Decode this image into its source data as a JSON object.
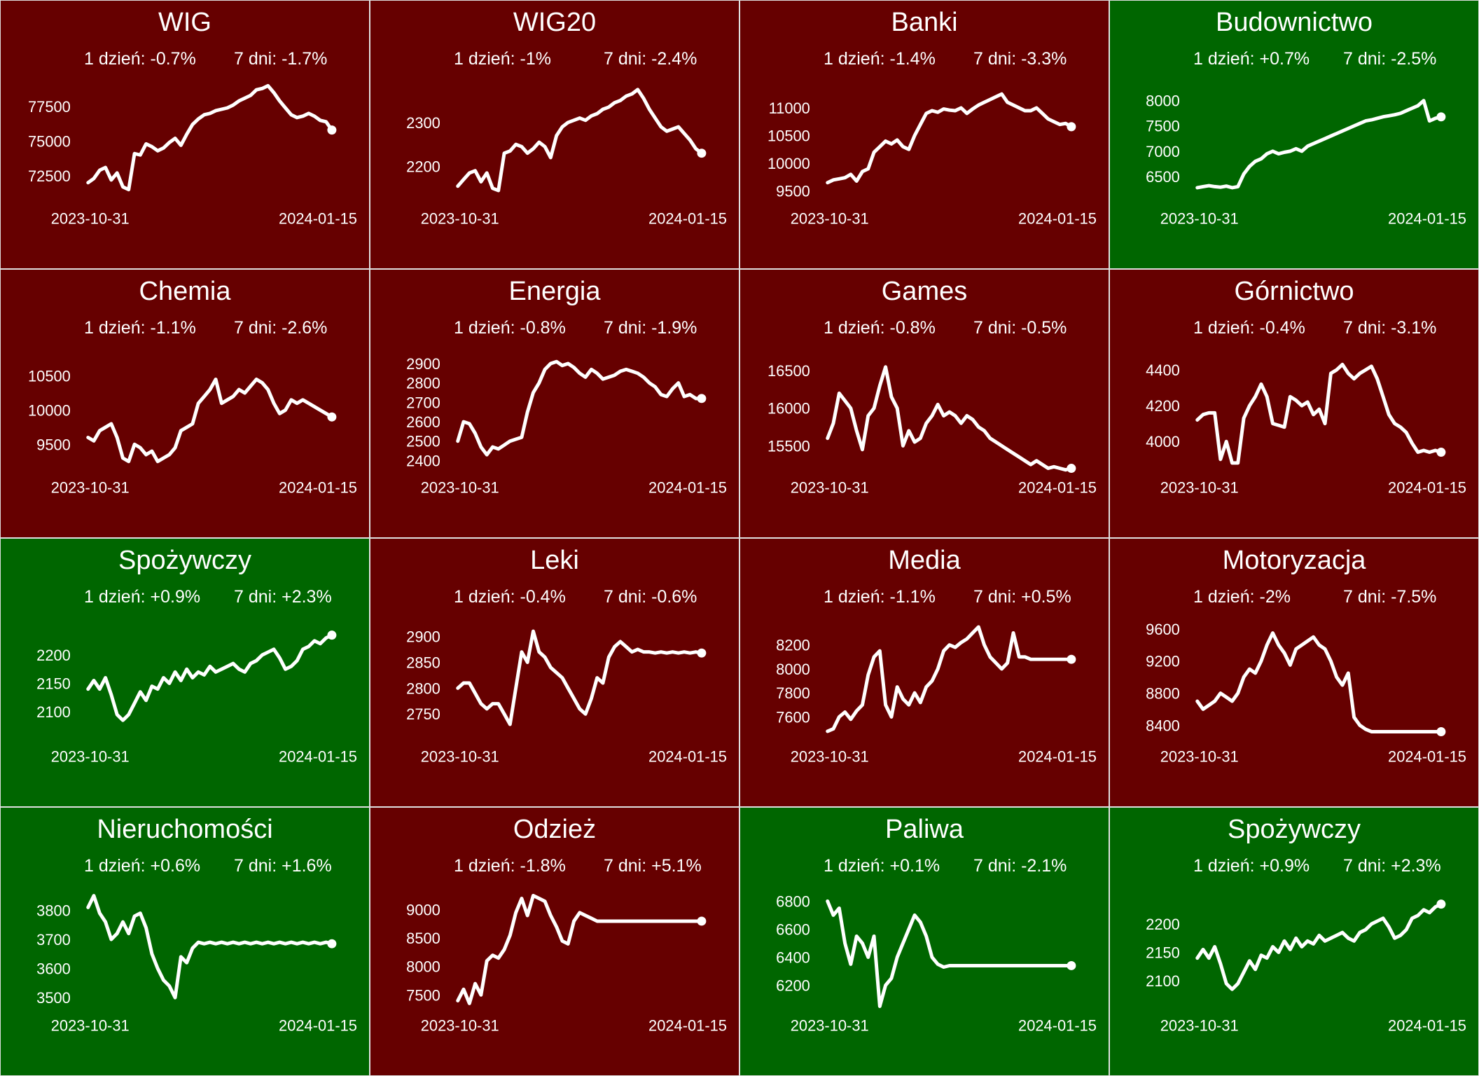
{
  "colors": {
    "down": "#660000",
    "up": "#006600",
    "line": "#ffffff",
    "text": "#ffffff",
    "border": "#e0e0e0"
  },
  "labels": {
    "day_prefix": "1 dzień:",
    "week_prefix": "7 dni:"
  },
  "chart_data": [
    {
      "type": "line",
      "title": "WIG",
      "trend": "down",
      "day_change": "-0.7%",
      "week_change": "-1.7%",
      "x_start": "2023-10-31",
      "x_end": "2024-01-15",
      "yticks": [
        "72500",
        "75000",
        "77500"
      ],
      "ylim": [
        70800,
        79200
      ],
      "values": [
        72000,
        72300,
        72900,
        73100,
        72200,
        72700,
        71700,
        71500,
        74100,
        74000,
        74800,
        74600,
        74300,
        74500,
        74900,
        75200,
        74700,
        75500,
        76200,
        76600,
        76900,
        77000,
        77200,
        77300,
        77400,
        77600,
        77900,
        78100,
        78300,
        78700,
        78800,
        79000,
        78500,
        77900,
        77400,
        76900,
        76700,
        76800,
        77000,
        76800,
        76500,
        76400,
        75800
      ]
    },
    {
      "type": "line",
      "title": "WIG20",
      "trend": "down",
      "day_change": "-1%",
      "week_change": "-2.4%",
      "x_start": "2023-10-31",
      "x_end": "2024-01-15",
      "yticks": [
        "2200",
        "2300"
      ],
      "ylim": [
        2125,
        2390
      ],
      "values": [
        2155,
        2170,
        2185,
        2190,
        2165,
        2185,
        2150,
        2145,
        2230,
        2235,
        2250,
        2245,
        2230,
        2240,
        2255,
        2245,
        2220,
        2270,
        2290,
        2300,
        2305,
        2310,
        2305,
        2315,
        2320,
        2330,
        2335,
        2345,
        2350,
        2360,
        2365,
        2375,
        2355,
        2330,
        2310,
        2290,
        2280,
        2285,
        2290,
        2275,
        2260,
        2240,
        2230
      ]
    },
    {
      "type": "line",
      "title": "Banki",
      "trend": "down",
      "day_change": "-1.4%",
      "week_change": "-3.3%",
      "x_start": "2023-10-31",
      "x_end": "2024-01-15",
      "yticks": [
        "9500",
        "10000",
        "10500",
        "11000"
      ],
      "ylim": [
        9350,
        11450
      ],
      "values": [
        9650,
        9700,
        9720,
        9740,
        9800,
        9680,
        9850,
        9900,
        10200,
        10300,
        10400,
        10350,
        10420,
        10300,
        10250,
        10500,
        10700,
        10900,
        10950,
        10920,
        10980,
        10960,
        10950,
        11000,
        10900,
        10980,
        11050,
        11100,
        11150,
        11200,
        11250,
        11100,
        11050,
        11000,
        10950,
        10950,
        11000,
        10900,
        10800,
        10750,
        10700,
        10720,
        10660
      ]
    },
    {
      "type": "line",
      "title": "Budownictwo",
      "trend": "up",
      "day_change": "+0.7%",
      "week_change": "-2.5%",
      "x_start": "2023-10-31",
      "x_end": "2024-01-15",
      "yticks": [
        "6500",
        "7000",
        "7500",
        "8000"
      ],
      "ylim": [
        6050,
        8350
      ],
      "values": [
        6280,
        6300,
        6320,
        6300,
        6290,
        6310,
        6280,
        6300,
        6550,
        6700,
        6800,
        6850,
        6950,
        7000,
        6950,
        6980,
        7000,
        7050,
        7000,
        7100,
        7150,
        7200,
        7250,
        7300,
        7350,
        7400,
        7450,
        7500,
        7550,
        7600,
        7620,
        7650,
        7680,
        7700,
        7720,
        7750,
        7800,
        7850,
        7900,
        8000,
        7600,
        7650,
        7680
      ]
    },
    {
      "type": "line",
      "title": "Chemia",
      "trend": "down",
      "day_change": "-1.1%",
      "week_change": "-2.6%",
      "x_start": "2023-10-31",
      "x_end": "2024-01-15",
      "yticks": [
        "9500",
        "10000",
        "10500"
      ],
      "ylim": [
        9150,
        10850
      ],
      "values": [
        9600,
        9550,
        9700,
        9750,
        9800,
        9600,
        9300,
        9250,
        9500,
        9450,
        9350,
        9400,
        9250,
        9300,
        9350,
        9450,
        9700,
        9750,
        9800,
        10100,
        10200,
        10300,
        10450,
        10100,
        10150,
        10200,
        10300,
        10250,
        10350,
        10450,
        10400,
        10300,
        10100,
        9950,
        10000,
        10150,
        10100,
        10150,
        10100,
        10050,
        10000,
        9950,
        9900
      ]
    },
    {
      "type": "line",
      "title": "Energia",
      "trend": "down",
      "day_change": "-0.8%",
      "week_change": "-1.9%",
      "x_start": "2023-10-31",
      "x_end": "2024-01-15",
      "yticks": [
        "2400",
        "2500",
        "2600",
        "2700",
        "2800",
        "2900"
      ],
      "ylim": [
        2360,
        2960
      ],
      "values": [
        2500,
        2600,
        2590,
        2540,
        2470,
        2430,
        2470,
        2460,
        2480,
        2500,
        2510,
        2520,
        2650,
        2750,
        2800,
        2870,
        2900,
        2910,
        2890,
        2900,
        2880,
        2850,
        2830,
        2870,
        2850,
        2820,
        2830,
        2840,
        2860,
        2870,
        2860,
        2850,
        2830,
        2800,
        2780,
        2740,
        2730,
        2770,
        2800,
        2730,
        2740,
        2720,
        2720
      ]
    },
    {
      "type": "line",
      "title": "Games",
      "trend": "down",
      "day_change": "-0.8%",
      "week_change": "-0.5%",
      "x_start": "2023-10-31",
      "x_end": "2024-01-15",
      "yticks": [
        "15500",
        "16000",
        "16500"
      ],
      "ylim": [
        15200,
        16750
      ],
      "values": [
        15600,
        15800,
        16200,
        16100,
        16000,
        15700,
        15450,
        15900,
        16000,
        16300,
        16550,
        16150,
        16000,
        15500,
        15700,
        15550,
        15600,
        15800,
        15900,
        16050,
        15900,
        15950,
        15900,
        15800,
        15900,
        15850,
        15750,
        15700,
        15600,
        15550,
        15500,
        15450,
        15400,
        15350,
        15300,
        15250,
        15300,
        15250,
        15200,
        15220,
        15200,
        15180,
        15200
      ]
    },
    {
      "type": "line",
      "title": "Górnictwo",
      "trend": "down",
      "day_change": "-0.4%",
      "week_change": "-3.1%",
      "x_start": "2023-10-31",
      "x_end": "2024-01-15",
      "yticks": [
        "4000",
        "4200",
        "4400"
      ],
      "ylim": [
        3850,
        4500
      ],
      "values": [
        4120,
        4150,
        4160,
        4160,
        3900,
        4000,
        3880,
        3880,
        4130,
        4200,
        4250,
        4320,
        4250,
        4100,
        4090,
        4080,
        4250,
        4230,
        4200,
        4220,
        4150,
        4180,
        4100,
        4380,
        4400,
        4430,
        4380,
        4350,
        4380,
        4400,
        4420,
        4350,
        4250,
        4150,
        4100,
        4080,
        4050,
        3990,
        3940,
        3950,
        3940,
        3950,
        3940
      ]
    },
    {
      "type": "line",
      "title": "Spożywczy",
      "trend": "up",
      "day_change": "+0.9%",
      "week_change": "+2.3%",
      "x_start": "2023-10-31",
      "x_end": "2024-01-15",
      "yticks": [
        "2100",
        "2150",
        "2200"
      ],
      "ylim": [
        2055,
        2260
      ],
      "values": [
        2140,
        2155,
        2140,
        2160,
        2130,
        2095,
        2085,
        2095,
        2115,
        2135,
        2120,
        2145,
        2140,
        2160,
        2150,
        2170,
        2155,
        2175,
        2160,
        2170,
        2165,
        2180,
        2170,
        2175,
        2180,
        2185,
        2175,
        2170,
        2185,
        2190,
        2200,
        2205,
        2210,
        2195,
        2175,
        2180,
        2190,
        2210,
        2215,
        2225,
        2220,
        2230,
        2235
      ]
    },
    {
      "type": "line",
      "title": "Leki",
      "trend": "down",
      "day_change": "-0.4%",
      "week_change": "-0.6%",
      "x_start": "2023-10-31",
      "x_end": "2024-01-15",
      "yticks": [
        "2750",
        "2800",
        "2850",
        "2900"
      ],
      "ylim": [
        2705,
        2930
      ],
      "values": [
        2800,
        2810,
        2810,
        2790,
        2770,
        2760,
        2770,
        2770,
        2750,
        2730,
        2800,
        2870,
        2850,
        2910,
        2870,
        2860,
        2840,
        2830,
        2820,
        2800,
        2780,
        2760,
        2750,
        2780,
        2820,
        2810,
        2860,
        2880,
        2890,
        2880,
        2870,
        2875,
        2870,
        2870,
        2868,
        2870,
        2868,
        2870,
        2868,
        2870,
        2868,
        2870,
        2868
      ]
    },
    {
      "type": "line",
      "title": "Media",
      "trend": "down",
      "day_change": "-1.1%",
      "week_change": "+0.5%",
      "x_start": "2023-10-31",
      "x_end": "2024-01-15",
      "yticks": [
        "7600",
        "7800",
        "8000",
        "8200"
      ],
      "ylim": [
        7430,
        8400
      ],
      "values": [
        7480,
        7500,
        7600,
        7640,
        7580,
        7650,
        7700,
        7950,
        8100,
        8150,
        7700,
        7600,
        7850,
        7750,
        7700,
        7800,
        7720,
        7850,
        7900,
        8000,
        8150,
        8200,
        8180,
        8220,
        8250,
        8300,
        8350,
        8200,
        8100,
        8050,
        8000,
        8050,
        8300,
        8100,
        8100,
        8080,
        8080,
        8080,
        8080,
        8080,
        8080,
        8080,
        8080
      ]
    },
    {
      "type": "line",
      "title": "Motoryzacja",
      "trend": "down",
      "day_change": "-2%",
      "week_change": "-7.5%",
      "x_start": "2023-10-31",
      "x_end": "2024-01-15",
      "yticks": [
        "8400",
        "8800",
        "9200",
        "9600"
      ],
      "ylim": [
        8250,
        9700
      ],
      "values": [
        8700,
        8600,
        8650,
        8700,
        8800,
        8750,
        8700,
        8800,
        9000,
        9100,
        9050,
        9200,
        9400,
        9550,
        9400,
        9300,
        9150,
        9350,
        9400,
        9450,
        9500,
        9400,
        9350,
        9200,
        9000,
        8900,
        9050,
        8500,
        8400,
        8350,
        8320,
        8320,
        8320,
        8320,
        8320,
        8320,
        8320,
        8320,
        8320,
        8320,
        8320,
        8320,
        8320
      ]
    },
    {
      "type": "line",
      "title": "Nieruchomości",
      "trend": "up",
      "day_change": "+0.6%",
      "week_change": "+1.6%",
      "x_start": "2023-10-31",
      "x_end": "2024-01-15",
      "yticks": [
        "3500",
        "3600",
        "3700",
        "3800"
      ],
      "ylim": [
        3470,
        3870
      ],
      "values": [
        3810,
        3850,
        3790,
        3760,
        3700,
        3720,
        3760,
        3720,
        3780,
        3790,
        3740,
        3650,
        3600,
        3560,
        3540,
        3500,
        3640,
        3620,
        3670,
        3690,
        3685,
        3690,
        3685,
        3690,
        3685,
        3690,
        3685,
        3690,
        3685,
        3690,
        3685,
        3690,
        3685,
        3690,
        3685,
        3690,
        3685,
        3690,
        3685,
        3690,
        3685,
        3690,
        3685
      ]
    },
    {
      "type": "line",
      "title": "Odzież",
      "trend": "down",
      "day_change": "-1.8%",
      "week_change": "+5.1%",
      "x_start": "2023-10-31",
      "x_end": "2024-01-15",
      "yticks": [
        "7500",
        "8000",
        "8500",
        "9000"
      ],
      "ylim": [
        7300,
        9350
      ],
      "values": [
        7400,
        7600,
        7350,
        7700,
        7500,
        8100,
        8200,
        8150,
        8300,
        8550,
        8950,
        9200,
        8900,
        9250,
        9200,
        9150,
        8900,
        8700,
        8450,
        8400,
        8800,
        8950,
        8900,
        8850,
        8800,
        8800,
        8800,
        8800,
        8800,
        8800,
        8800,
        8800,
        8800,
        8800,
        8800,
        8800,
        8800,
        8800,
        8800,
        8800,
        8800,
        8800,
        8800
      ]
    },
    {
      "type": "line",
      "title": "Paliwa",
      "trend": "up",
      "day_change": "+0.1%",
      "week_change": "-2.1%",
      "x_start": "2023-10-31",
      "x_end": "2024-01-15",
      "yticks": [
        "6200",
        "6400",
        "6600",
        "6800"
      ],
      "ylim": [
        6050,
        6880
      ],
      "values": [
        6800,
        6700,
        6750,
        6500,
        6350,
        6550,
        6500,
        6400,
        6550,
        6050,
        6200,
        6250,
        6400,
        6500,
        6600,
        6700,
        6650,
        6550,
        6400,
        6350,
        6330,
        6340,
        6340,
        6340,
        6340,
        6340,
        6340,
        6340,
        6340,
        6340,
        6340,
        6340,
        6340,
        6340,
        6340,
        6340,
        6340,
        6340,
        6340,
        6340,
        6340,
        6340,
        6340
      ]
    },
    {
      "type": "line",
      "title": "Spożywczy",
      "trend": "up",
      "day_change": "+0.9%",
      "week_change": "+2.3%",
      "x_start": "2023-10-31",
      "x_end": "2024-01-15",
      "yticks": [
        "2100",
        "2150",
        "2200"
      ],
      "ylim": [
        2055,
        2260
      ],
      "values": [
        2140,
        2155,
        2140,
        2160,
        2130,
        2095,
        2085,
        2095,
        2115,
        2135,
        2120,
        2145,
        2140,
        2160,
        2150,
        2170,
        2155,
        2175,
        2160,
        2170,
        2165,
        2180,
        2170,
        2175,
        2180,
        2185,
        2175,
        2170,
        2185,
        2190,
        2200,
        2205,
        2210,
        2195,
        2175,
        2180,
        2190,
        2210,
        2215,
        2225,
        2220,
        2230,
        2235
      ]
    }
  ]
}
